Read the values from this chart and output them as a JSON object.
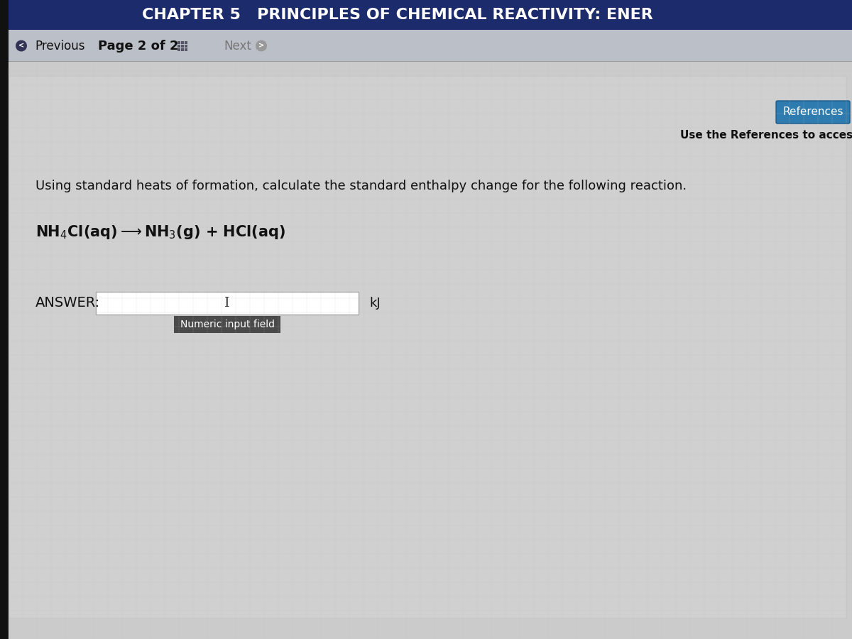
{
  "header_text": "CHAPTER 5   PRINCIPLES OF CHEMICAL REACTIVITY: ENER",
  "header_bg": "#1c2b6b",
  "header_text_color": "#ffffff",
  "nav_bg": "#b0b5bf",
  "nav_bg2": "#c5c8cf",
  "body_bg": "#c8c8c8",
  "body_content_bg": "#d2d2d2",
  "left_strip_bg": "#1a1a1a",
  "references_btn_color": "#2e7bb0",
  "references_btn_text": "References",
  "references_note": "Use the References to access important val",
  "question_text": "Using standard heats of formation, calculate the standard enthalpy change for the following reaction.",
  "answer_label": "ANSWER:",
  "unit_text": "kJ",
  "tooltip_text": "Numeric input field",
  "nav_text_prev": "Previous",
  "nav_text_page": "Page 2 of 2",
  "nav_text_next": "Next",
  "fig_width": 12.0,
  "fig_height": 9.0,
  "dpi": 100
}
